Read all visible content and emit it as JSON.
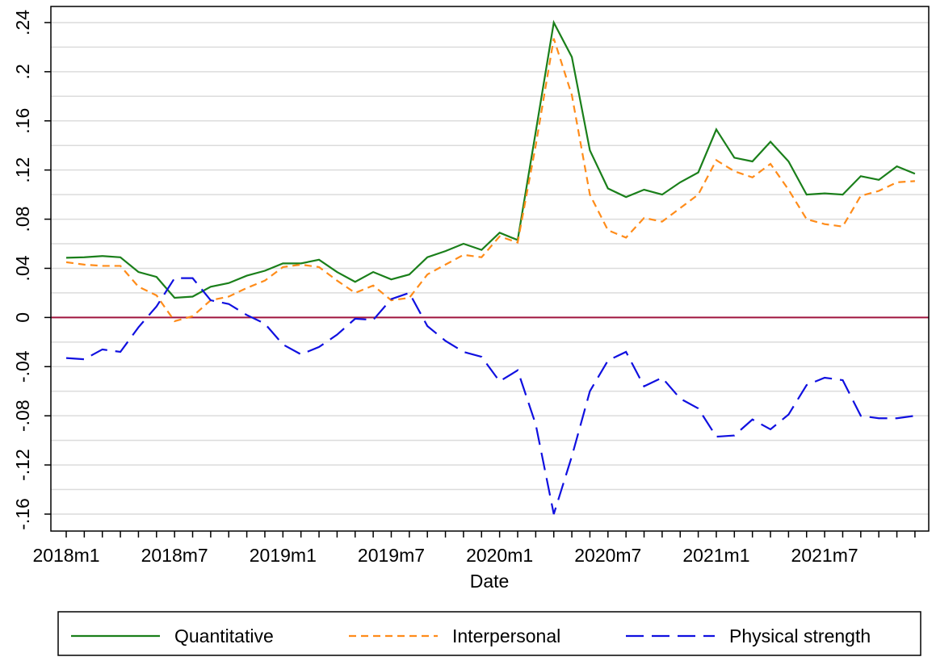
{
  "chart_data": {
    "type": "line",
    "x_label": "Date",
    "categories": [
      "2018m1",
      null,
      null,
      null,
      null,
      null,
      "2018m7",
      null,
      null,
      null,
      null,
      null,
      "2019m1",
      null,
      null,
      null,
      null,
      null,
      "2019m7",
      null,
      null,
      null,
      null,
      null,
      "2020m1",
      null,
      null,
      null,
      null,
      null,
      "2020m7",
      null,
      null,
      null,
      null,
      null,
      "2021m1",
      null,
      null,
      null,
      null,
      null,
      "2021m7",
      null,
      null,
      null,
      null,
      null
    ],
    "series": [
      {
        "name": "Quantitative",
        "color": "#1a7f1a",
        "dash": "solid",
        "values": [
          0.0486,
          0.049,
          0.05,
          0.049,
          0.037,
          0.033,
          0.016,
          0.017,
          0.025,
          0.028,
          0.034,
          0.038,
          0.044,
          0.044,
          0.047,
          0.037,
          0.029,
          0.037,
          0.031,
          0.035,
          0.049,
          0.054,
          0.06,
          0.055,
          0.069,
          0.063,
          0.151,
          0.24,
          0.212,
          0.136,
          0.105,
          0.098,
          0.104,
          0.1,
          0.11,
          0.118,
          0.153,
          0.13,
          0.127,
          0.143,
          0.127,
          0.1,
          0.101,
          0.1,
          0.115,
          0.112,
          0.123,
          0.117
        ]
      },
      {
        "name": "Interpersonal",
        "color": "#ff8c1a",
        "dash": "short",
        "values": [
          0.045,
          0.043,
          0.042,
          0.042,
          0.025,
          0.018,
          -0.003,
          0.001,
          0.014,
          0.017,
          0.024,
          0.03,
          0.041,
          0.043,
          0.041,
          0.03,
          0.02,
          0.026,
          0.014,
          0.016,
          0.035,
          0.043,
          0.051,
          0.049,
          0.066,
          0.061,
          0.14,
          0.227,
          0.181,
          0.1,
          0.071,
          0.065,
          0.081,
          0.078,
          0.089,
          0.1,
          0.128,
          0.119,
          0.114,
          0.125,
          0.104,
          0.08,
          0.076,
          0.074,
          0.099,
          0.103,
          0.11,
          0.111
        ]
      },
      {
        "name": "Physical strength",
        "color": "#1010e0",
        "dash": "long",
        "values": [
          -0.033,
          -0.034,
          -0.026,
          -0.028,
          -0.008,
          0.009,
          0.032,
          0.032,
          0.014,
          0.011,
          0.002,
          -0.005,
          -0.022,
          -0.03,
          -0.024,
          -0.014,
          -0.001,
          -0.002,
          0.015,
          0.02,
          -0.007,
          -0.019,
          -0.028,
          -0.032,
          -0.052,
          -0.043,
          -0.087,
          -0.16,
          -0.113,
          -0.06,
          -0.035,
          -0.028,
          -0.056,
          -0.049,
          -0.066,
          -0.074,
          -0.097,
          -0.096,
          -0.083,
          -0.091,
          -0.079,
          -0.055,
          -0.049,
          -0.051,
          -0.08,
          -0.082,
          -0.082,
          -0.08
        ]
      }
    ],
    "ylim": [
      -0.1738,
      0.2531
    ],
    "yticks": [
      {
        "value": -0.16,
        "label": "-.16"
      },
      {
        "value": -0.12,
        "label": "-.12"
      },
      {
        "value": -0.08,
        "label": "-.08"
      },
      {
        "value": -0.04,
        "label": "-.04"
      },
      0,
      {
        "value": 0.04,
        "label": ".04"
      },
      {
        "value": 0.08,
        "label": ".08"
      },
      {
        "value": 0.12,
        "label": ".12"
      },
      {
        "value": 0.16,
        "label": ".16"
      },
      {
        "value": 0.2,
        "label": ".2"
      },
      {
        "value": 0.24,
        "label": ".24"
      }
    ],
    "ygrid": [
      -0.16,
      -0.14,
      -0.12,
      -0.1,
      -0.08,
      -0.06,
      -0.04,
      -0.02,
      0,
      0.02,
      0.04,
      0.06,
      0.08,
      0.1,
      0.12,
      0.14,
      0.16,
      0.18,
      0.2,
      0.22,
      0.24
    ],
    "reference_line": {
      "value": 0,
      "color": "#a0153e"
    },
    "legend": "bottom"
  }
}
